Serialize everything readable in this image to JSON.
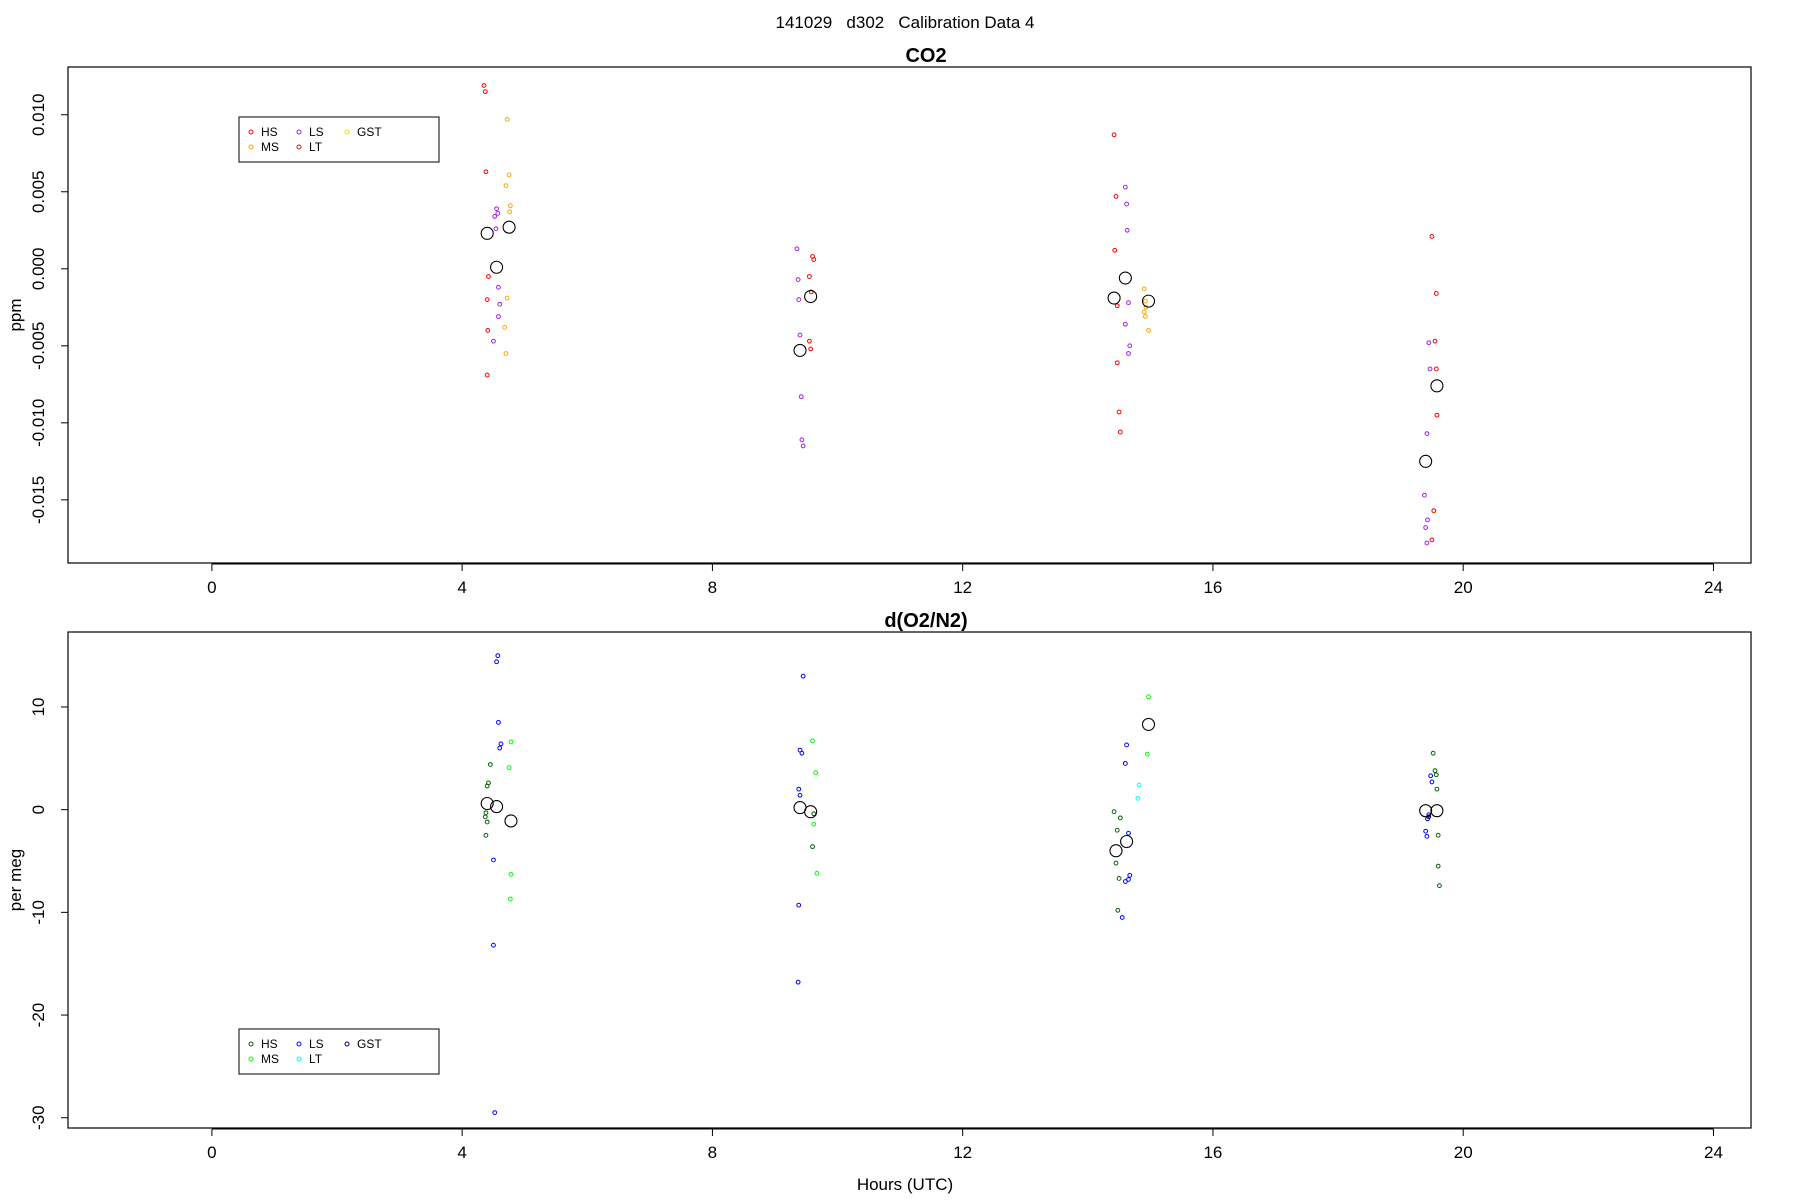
{
  "page_title": "141029   d302   Calibration Data 4",
  "xlabel": "Hours (UTC)",
  "chart_data": [
    {
      "type": "scatter",
      "title": "CO2",
      "ylabel": "ppm",
      "xlim": [
        -2.3,
        24.6
      ],
      "ylim": [
        -0.0191,
        0.0131
      ],
      "xticks": [
        0,
        4,
        8,
        12,
        16,
        20,
        24
      ],
      "yticks": [
        -0.015,
        -0.01,
        -0.005,
        0.0,
        0.005,
        0.01
      ],
      "ytick_labels": [
        "-0.015",
        "-0.010",
        "-0.005",
        "0.000",
        "0.005",
        "0.010"
      ],
      "legend_position": "top-left",
      "legend": [
        {
          "label": "HS",
          "color": "#ff0000"
        },
        {
          "label": "MS",
          "color": "#ffa500"
        },
        {
          "label": "LS",
          "color": "#a020f0"
        },
        {
          "label": "LT",
          "color": "#b22222"
        },
        {
          "label": "GST",
          "color": "#ffd700"
        }
      ],
      "series": [
        {
          "name": "HS",
          "color": "#ff0000",
          "points": [
            [
              4.35,
              0.0119
            ],
            [
              4.37,
              0.0115
            ],
            [
              4.38,
              0.0063
            ],
            [
              4.42,
              -0.0005
            ],
            [
              4.4,
              -0.002
            ],
            [
              4.41,
              -0.004
            ],
            [
              4.4,
              -0.0069
            ],
            [
              9.6,
              0.0008
            ],
            [
              9.62,
              0.0006
            ],
            [
              9.55,
              -0.0005
            ],
            [
              9.58,
              -0.0015
            ],
            [
              9.55,
              -0.0047
            ],
            [
              9.57,
              -0.0052
            ],
            [
              14.42,
              0.0087
            ],
            [
              14.45,
              0.0047
            ],
            [
              14.43,
              0.0012
            ],
            [
              14.47,
              -0.0024
            ],
            [
              14.47,
              -0.0061
            ],
            [
              14.5,
              -0.0093
            ],
            [
              14.52,
              -0.0106
            ],
            [
              19.5,
              0.0021
            ],
            [
              19.57,
              -0.0016
            ],
            [
              19.55,
              -0.0047
            ],
            [
              19.57,
              -0.0065
            ],
            [
              19.58,
              -0.0095
            ],
            [
              19.53,
              -0.0157
            ],
            [
              19.5,
              -0.0176
            ]
          ]
        },
        {
          "name": "MS",
          "color": "#ffa500",
          "points": [
            [
              4.72,
              0.0097
            ],
            [
              4.75,
              0.0061
            ],
            [
              4.7,
              0.0054
            ],
            [
              4.77,
              0.0041
            ],
            [
              4.76,
              0.0037
            ],
            [
              4.72,
              -0.0019
            ],
            [
              4.68,
              -0.0038
            ],
            [
              4.7,
              -0.0055
            ],
            [
              14.9,
              -0.0013
            ],
            [
              14.92,
              -0.0021
            ],
            [
              14.93,
              -0.0025
            ],
            [
              14.9,
              -0.0028
            ],
            [
              14.92,
              -0.0031
            ],
            [
              14.97,
              -0.004
            ]
          ]
        },
        {
          "name": "LS",
          "color": "#a020f0",
          "points": [
            [
              4.55,
              0.0039
            ],
            [
              4.57,
              0.0036
            ],
            [
              4.52,
              0.0034
            ],
            [
              4.54,
              0.0026
            ],
            [
              4.58,
              -0.0012
            ],
            [
              4.6,
              -0.0023
            ],
            [
              4.58,
              -0.0031
            ],
            [
              4.5,
              -0.0047
            ],
            [
              9.35,
              0.0013
            ],
            [
              9.37,
              -0.0007
            ],
            [
              9.38,
              -0.002
            ],
            [
              9.4,
              -0.0043
            ],
            [
              9.42,
              -0.0083
            ],
            [
              9.43,
              -0.0111
            ],
            [
              9.45,
              -0.0115
            ],
            [
              14.6,
              0.0053
            ],
            [
              14.62,
              0.0042
            ],
            [
              14.63,
              0.0025
            ],
            [
              14.65,
              -0.0022
            ],
            [
              14.6,
              -0.0036
            ],
            [
              14.67,
              -0.005
            ],
            [
              14.65,
              -0.0055
            ],
            [
              19.45,
              -0.0048
            ],
            [
              19.47,
              -0.0065
            ],
            [
              19.42,
              -0.0107
            ],
            [
              19.38,
              -0.0147
            ],
            [
              19.43,
              -0.0163
            ],
            [
              19.4,
              -0.0168
            ],
            [
              19.42,
              -0.0178
            ]
          ]
        },
        {
          "name": "Mean",
          "color": "#000000",
          "marker": "large",
          "points": [
            [
              4.4,
              0.0023
            ],
            [
              4.55,
              0.0001
            ],
            [
              4.75,
              0.0027
            ],
            [
              9.4,
              -0.0053
            ],
            [
              9.57,
              -0.0018
            ],
            [
              14.42,
              -0.0019
            ],
            [
              14.6,
              -0.0006
            ],
            [
              14.97,
              -0.0021
            ],
            [
              19.4,
              -0.0125
            ],
            [
              19.58,
              -0.0076
            ]
          ]
        }
      ]
    },
    {
      "type": "scatter",
      "title": "d(O2/N2)",
      "ylabel": "per meg",
      "xlim": [
        -2.3,
        24.6
      ],
      "ylim": [
        -31.0,
        17.3
      ],
      "xticks": [
        0,
        4,
        8,
        12,
        16,
        20,
        24
      ],
      "yticks": [
        -30,
        -20,
        -10,
        0,
        10
      ],
      "ytick_labels": [
        "-30",
        "-20",
        "-10",
        "0",
        "10"
      ],
      "legend_position": "bottom-left",
      "legend": [
        {
          "label": "HS",
          "color": "#006400"
        },
        {
          "label": "MS",
          "color": "#00ff00"
        },
        {
          "label": "LS",
          "color": "#0000ff"
        },
        {
          "label": "LT",
          "color": "#00ffff"
        },
        {
          "label": "GST",
          "color": "#00008b"
        }
      ],
      "series": [
        {
          "name": "HS",
          "color": "#006400",
          "points": [
            [
              4.45,
              4.4
            ],
            [
              4.42,
              2.6
            ],
            [
              4.4,
              2.3
            ],
            [
              4.38,
              -0.3
            ],
            [
              4.37,
              -0.7
            ],
            [
              4.4,
              -1.2
            ],
            [
              4.38,
              -2.5
            ],
            [
              9.62,
              -0.4
            ],
            [
              9.6,
              -3.6
            ],
            [
              14.42,
              -0.2
            ],
            [
              14.52,
              -0.8
            ],
            [
              14.47,
              -2.0
            ],
            [
              14.45,
              -5.2
            ],
            [
              14.5,
              -6.7
            ],
            [
              14.48,
              -9.8
            ],
            [
              19.52,
              5.5
            ],
            [
              19.55,
              3.8
            ],
            [
              19.57,
              3.4
            ],
            [
              19.58,
              2.0
            ],
            [
              19.6,
              -2.5
            ],
            [
              19.6,
              -5.5
            ],
            [
              19.62,
              -7.4
            ]
          ]
        },
        {
          "name": "MS",
          "color": "#00ff00",
          "points": [
            [
              4.78,
              6.6
            ],
            [
              4.75,
              4.1
            ],
            [
              4.78,
              -6.3
            ],
            [
              4.77,
              -8.7
            ],
            [
              9.6,
              6.7
            ],
            [
              9.65,
              3.6
            ],
            [
              9.62,
              -1.4
            ],
            [
              9.67,
              -6.2
            ],
            [
              14.97,
              11.0
            ],
            [
              14.95,
              5.4
            ]
          ]
        },
        {
          "name": "LS",
          "color": "#0000ff",
          "points": [
            [
              4.57,
              15.0
            ],
            [
              4.55,
              14.4
            ],
            [
              4.58,
              8.5
            ],
            [
              4.62,
              6.4
            ],
            [
              4.6,
              6.0
            ],
            [
              4.5,
              -4.9
            ],
            [
              4.5,
              -13.2
            ],
            [
              4.52,
              -29.5
            ],
            [
              9.45,
              13.0
            ],
            [
              9.4,
              5.8
            ],
            [
              9.43,
              5.5
            ],
            [
              9.38,
              2.0
            ],
            [
              9.4,
              1.4
            ],
            [
              9.38,
              -9.3
            ],
            [
              9.37,
              -16.8
            ],
            [
              14.62,
              6.3
            ],
            [
              14.6,
              4.5
            ],
            [
              14.65,
              -2.3
            ],
            [
              14.67,
              -6.4
            ],
            [
              14.65,
              -6.8
            ],
            [
              14.6,
              -7.0
            ],
            [
              14.55,
              -10.5
            ],
            [
              19.48,
              3.3
            ],
            [
              19.5,
              2.7
            ],
            [
              19.45,
              -0.5
            ],
            [
              19.4,
              -2.1
            ],
            [
              19.42,
              -2.6
            ]
          ]
        },
        {
          "name": "LT",
          "color": "#00ffff",
          "points": [
            [
              14.82,
              2.4
            ],
            [
              14.8,
              1.1
            ]
          ]
        },
        {
          "name": "GST",
          "color": "#00008b",
          "points": [
            [
              19.43,
              -0.9
            ],
            [
              19.45,
              -0.7
            ]
          ]
        },
        {
          "name": "Mean",
          "color": "#000000",
          "marker": "large",
          "points": [
            [
              4.4,
              0.6
            ],
            [
              4.55,
              0.3
            ],
            [
              4.78,
              -1.1
            ],
            [
              9.4,
              0.2
            ],
            [
              9.57,
              -0.2
            ],
            [
              14.45,
              -4.0
            ],
            [
              14.62,
              -3.1
            ],
            [
              14.97,
              8.3
            ],
            [
              19.4,
              -0.1
            ],
            [
              19.58,
              -0.1
            ]
          ]
        }
      ]
    }
  ]
}
